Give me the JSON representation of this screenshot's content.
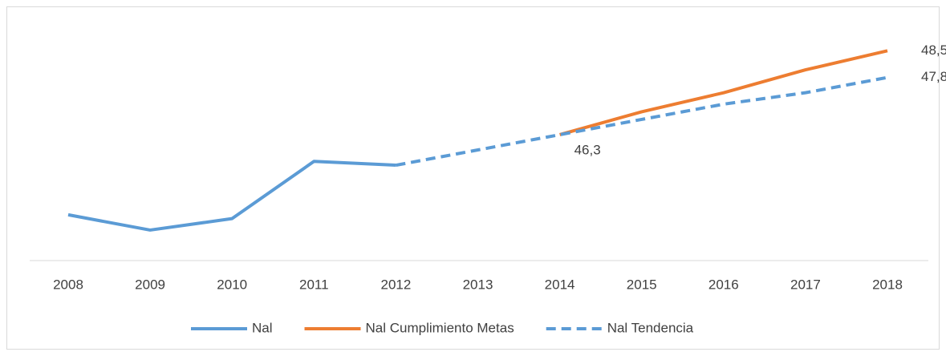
{
  "chart_data": {
    "type": "line",
    "categories": [
      "2008",
      "2009",
      "2010",
      "2011",
      "2012",
      "2013",
      "2014",
      "2015",
      "2016",
      "2017",
      "2018"
    ],
    "ylim": [
      43,
      49.2
    ],
    "series": [
      {
        "name": "Nal",
        "color": "#5b9bd5",
        "dashed": false,
        "values": [
          44.2,
          43.8,
          44.1,
          45.6,
          45.5,
          null,
          null,
          null,
          null,
          null,
          null
        ]
      },
      {
        "name": "Nal Cumplimiento Metas",
        "color": "#ed7d31",
        "dashed": false,
        "values": [
          null,
          null,
          null,
          null,
          null,
          null,
          46.3,
          46.9,
          47.4,
          48.0,
          48.5
        ],
        "value_labels": [
          null,
          null,
          null,
          null,
          null,
          null,
          null,
          null,
          null,
          null,
          "48,5"
        ]
      },
      {
        "name": "Nal Tendencia",
        "color": "#5b9bd5",
        "dashed": true,
        "values": [
          null,
          null,
          null,
          null,
          45.5,
          45.9,
          46.3,
          46.7,
          47.1,
          47.4,
          47.8
        ],
        "value_labels": [
          null,
          null,
          null,
          null,
          null,
          null,
          "46,3",
          null,
          null,
          null,
          "47,8"
        ]
      }
    ]
  }
}
